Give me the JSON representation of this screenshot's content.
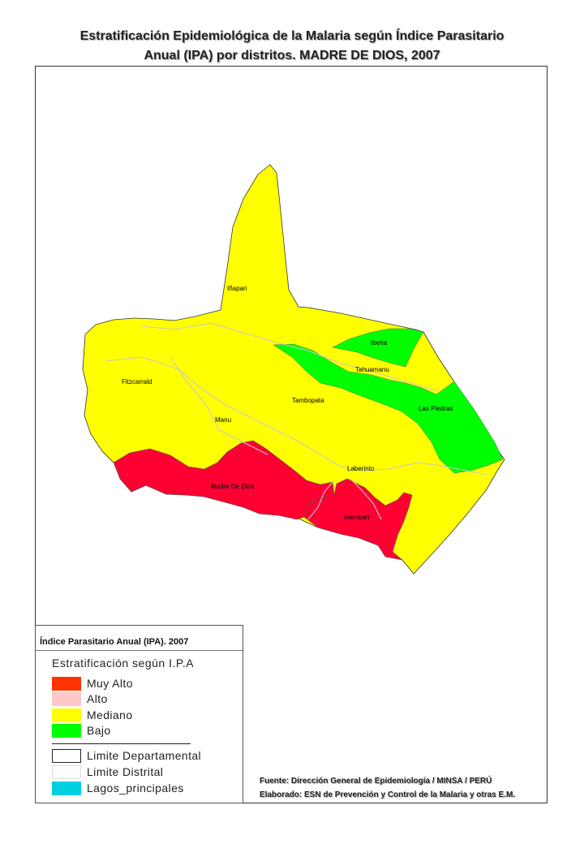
{
  "title": {
    "line1": "Estratificación Epidemiológica de la Malaria según Índice Parasitario",
    "line2": "Anual (IPA) por distritos. MADRE DE DIOS, 2007"
  },
  "colors": {
    "muy_alto": "#ff3300",
    "alto": "#ffc8c8",
    "mediano": "#ffff00",
    "bajo": "#00ff00",
    "lagos": "#00d0e0",
    "river": "#c8c8c8",
    "map_red": "#ff0033"
  },
  "districts": [
    {
      "name": "Iñapari",
      "class": "Mediano"
    },
    {
      "name": "Iberia",
      "class": "Bajo"
    },
    {
      "name": "Tahuamanu",
      "class": "Mediano"
    },
    {
      "name": "Las Piedras",
      "class": "Bajo"
    },
    {
      "name": "Fitzcarrald",
      "class": "Mediano"
    },
    {
      "name": "Tambopata",
      "class": "Mediano"
    },
    {
      "name": "Manu",
      "class": "Mediano"
    },
    {
      "name": "Laberinto",
      "class": "Mediano"
    },
    {
      "name": "Madre De Dios",
      "class": "Muy Alto"
    },
    {
      "name": "Inambari",
      "class": "Muy Alto"
    }
  ],
  "legend": {
    "heading": "Índice Parasitario Anual (IPA). 2007",
    "subtitle": "Estratificación según I.P.A",
    "classes": [
      "Muy Alto",
      "Alto",
      "Mediano",
      "Bajo"
    ],
    "boundaries": [
      "Limite Departamental",
      "Limite Distrital",
      "Lagos_principales"
    ]
  },
  "source": {
    "line1": "Fuente: Dirección General de Epidemiología / MINSA / PERÚ",
    "line2": "Elaborado: ESN de Prevención y Control de la Malaria y otras E.M."
  }
}
